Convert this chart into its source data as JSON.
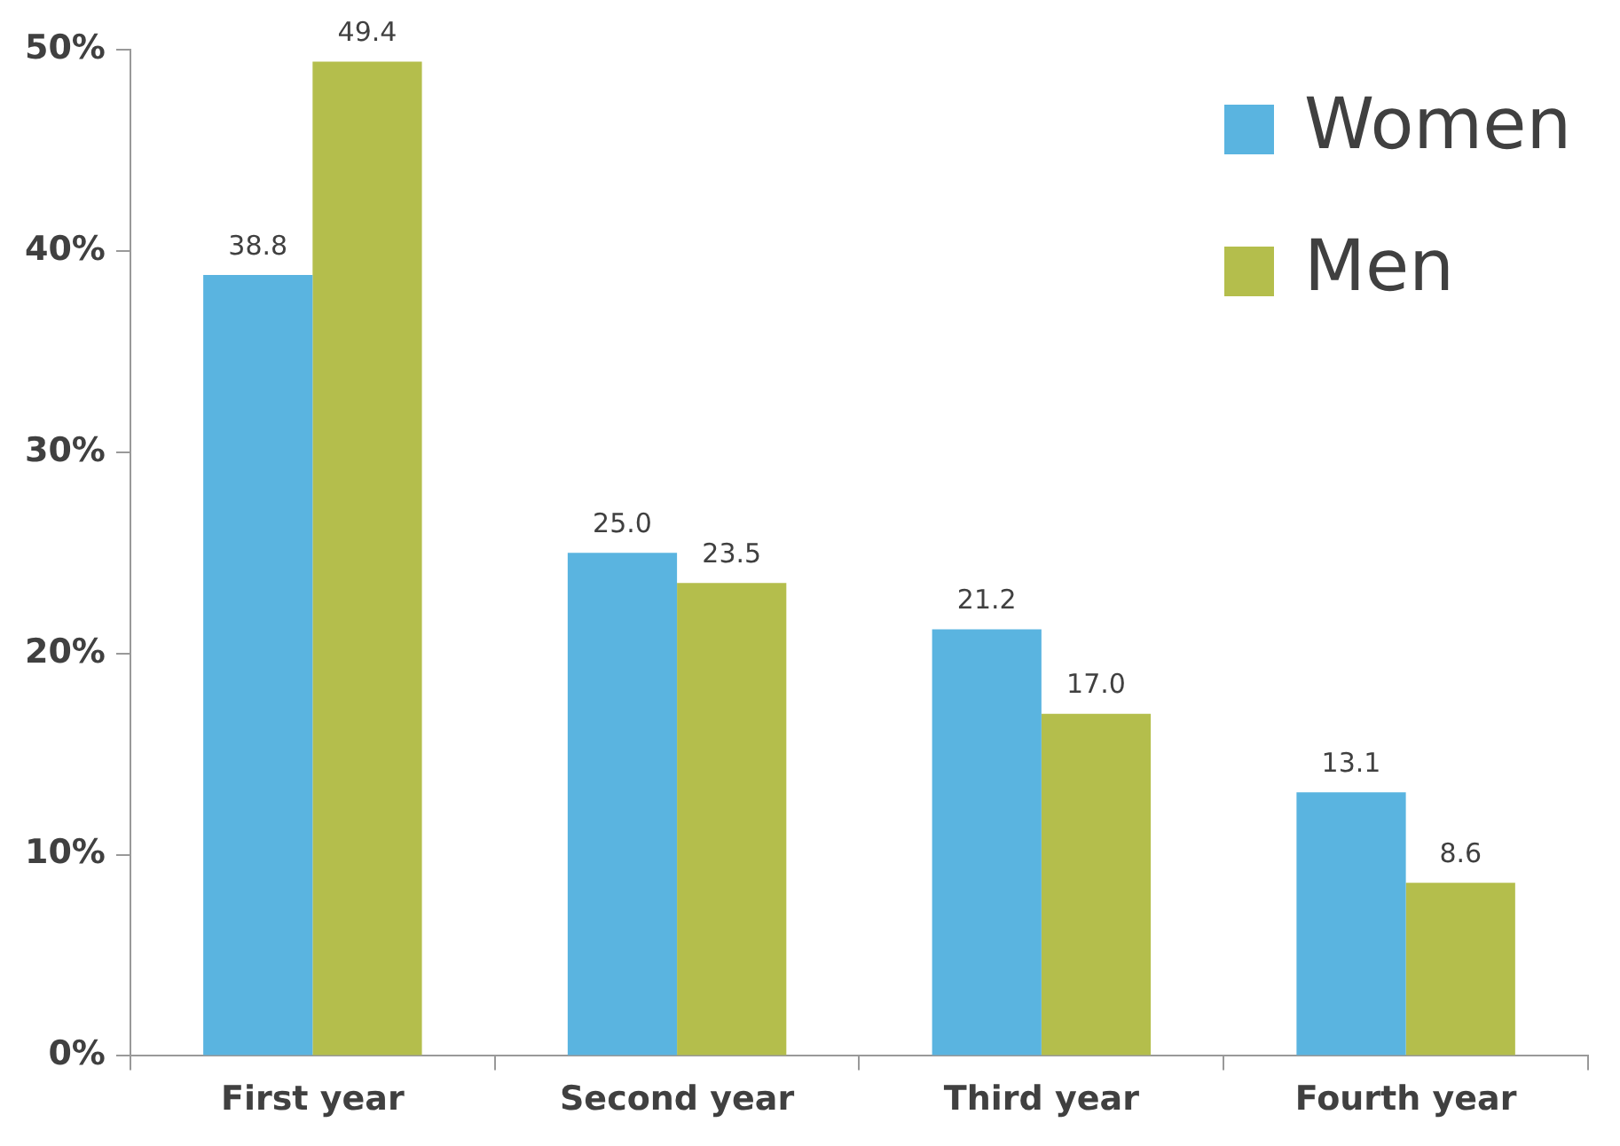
{
  "chart_data": {
    "type": "bar",
    "categories": [
      "First year",
      "Second year",
      "Third year",
      "Fourth year"
    ],
    "series": [
      {
        "name": "Women",
        "color": "#5ab4e0",
        "values": [
          38.8,
          25.0,
          21.2,
          13.1
        ],
        "value_labels": [
          "38.8",
          "25.0",
          "21.2",
          "13.1"
        ]
      },
      {
        "name": "Men",
        "color": "#b4be4c",
        "values": [
          49.4,
          23.5,
          17.0,
          8.6
        ],
        "value_labels": [
          "49.4",
          "23.5",
          "17.0",
          "8.6"
        ]
      }
    ],
    "ylim": [
      0,
      50
    ],
    "yticks": [
      {
        "value": 0,
        "label": "0%"
      },
      {
        "value": 10,
        "label": "10%"
      },
      {
        "value": 20,
        "label": "20%"
      },
      {
        "value": 30,
        "label": "30%"
      },
      {
        "value": 40,
        "label": "40%"
      },
      {
        "value": 50,
        "label": "50%"
      }
    ],
    "grid": false,
    "legend": "top right"
  }
}
